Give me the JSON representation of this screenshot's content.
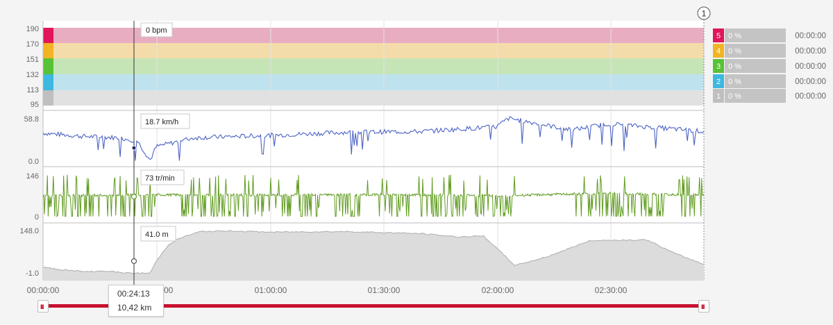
{
  "colors": {
    "z5": "#e0155a",
    "z4": "#f2b324",
    "z3": "#58c236",
    "z2": "#3db8e0",
    "z1": "#bfbfbf",
    "speed": "#4b62c4",
    "cadence": "#5f9b1e",
    "altitude_fill": "#dcdcdc",
    "altitude_line": "#b5b5b5",
    "range_bar": "#c8102e"
  },
  "marker": {
    "label": "1"
  },
  "cursor": {
    "time": "00:24:13",
    "distance": "10,42 km"
  },
  "range": {
    "start_icon": "III",
    "end_icon": "III"
  },
  "chart_data": {
    "type": "line",
    "x_axis": {
      "unit": "elapsed time",
      "ticks": [
        "00:00:00",
        "00:30:00",
        "01:00:00",
        "01:30:00",
        "02:00:00",
        "02:30:00"
      ],
      "range_s": [
        0,
        10500
      ]
    },
    "heart_rate": {
      "tooltip": "0 bpm",
      "y_ticks": [
        "190",
        "170",
        "151",
        "132",
        "113",
        "95"
      ],
      "zones": [
        {
          "zone": "5",
          "range": [
            170,
            190
          ],
          "percent": "0 %",
          "time": "00:00:00",
          "band_color": "#e9adc1"
        },
        {
          "zone": "4",
          "range": [
            151,
            170
          ],
          "percent": "0 %",
          "time": "00:00:00",
          "band_color": "#f4dcaa"
        },
        {
          "zone": "3",
          "range": [
            132,
            151
          ],
          "percent": "0 %",
          "time": "00:00:00",
          "band_color": "#c6e5b7"
        },
        {
          "zone": "2",
          "range": [
            113,
            132
          ],
          "percent": "0 %",
          "time": "00:00:00",
          "band_color": "#bee3ee"
        },
        {
          "zone": "1",
          "range": [
            95,
            113
          ],
          "percent": "0 %",
          "time": "00:00:00",
          "band_color": "#e1e1e1"
        }
      ]
    },
    "speed": {
      "tooltip": "18.7 km/h",
      "ylim": [
        0.0,
        58.8
      ],
      "y_ticks": [
        "58.8",
        "0.0"
      ],
      "samples": [
        [
          0,
          36
        ],
        [
          600,
          32
        ],
        [
          1200,
          30
        ],
        [
          1500,
          26
        ],
        [
          1700,
          1
        ],
        [
          1800,
          18.7
        ],
        [
          2400,
          30
        ],
        [
          3600,
          33
        ],
        [
          4800,
          37
        ],
        [
          6000,
          38
        ],
        [
          7200,
          44
        ],
        [
          7400,
          55
        ],
        [
          8400,
          40
        ],
        [
          9000,
          48
        ],
        [
          10500,
          38
        ]
      ]
    },
    "cadence": {
      "tooltip": "73 tr/min",
      "ylim": [
        0,
        146
      ],
      "y_ticks": [
        "146",
        "0"
      ],
      "samples": [
        [
          0,
          70
        ],
        [
          1800,
          73
        ],
        [
          3600,
          72
        ],
        [
          5400,
          74
        ],
        [
          7200,
          70
        ],
        [
          9000,
          78
        ],
        [
          10500,
          72
        ]
      ]
    },
    "altitude": {
      "tooltip": "41.0 m",
      "ylim": [
        -1.0,
        148.0
      ],
      "y_ticks": [
        "148.0",
        "-1.0"
      ],
      "samples": [
        [
          0,
          20
        ],
        [
          300,
          12
        ],
        [
          700,
          5
        ],
        [
          1000,
          8
        ],
        [
          1300,
          1
        ],
        [
          1700,
          0
        ],
        [
          1800,
          41
        ],
        [
          2000,
          98
        ],
        [
          2200,
          120
        ],
        [
          2500,
          140
        ],
        [
          3000,
          142
        ],
        [
          3600,
          138
        ],
        [
          4800,
          140
        ],
        [
          6000,
          133
        ],
        [
          6600,
          122
        ],
        [
          7000,
          125
        ],
        [
          7500,
          26
        ],
        [
          8000,
          55
        ],
        [
          8700,
          110
        ],
        [
          9600,
          112
        ],
        [
          10000,
          70
        ],
        [
          10500,
          30
        ]
      ]
    }
  }
}
